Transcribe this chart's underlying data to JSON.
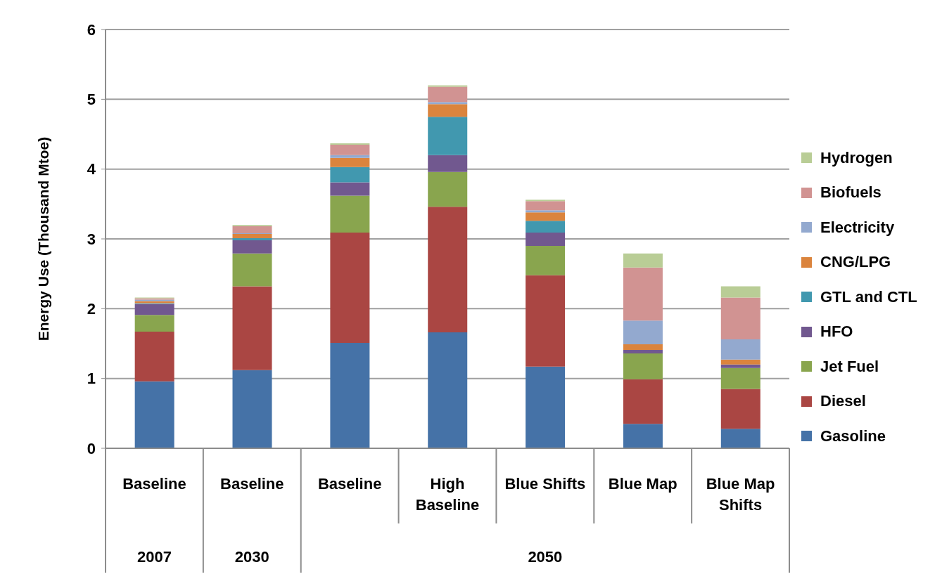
{
  "chart_data": {
    "type": "bar",
    "stacked": true,
    "ylabel": "Energy Use (Thousand Mtoe)",
    "categories": [
      "Baseline",
      "Baseline",
      "Baseline",
      "High Baseline",
      "Blue Shifts",
      "Blue Map",
      "Blue Map Shifts"
    ],
    "annotations": [
      "2007",
      "2030",
      "2050"
    ],
    "ylim": [
      0,
      6
    ],
    "yticks": [
      0,
      1,
      2,
      3,
      4,
      5,
      6
    ],
    "grid": "y",
    "legend": "right",
    "series": [
      {
        "name": "Gasoline",
        "color": "#4572a7",
        "values": [
          0.96,
          1.12,
          1.51,
          1.66,
          1.17,
          0.35,
          0.28
        ]
      },
      {
        "name": "Diesel",
        "color": "#aa4643",
        "values": [
          0.71,
          1.2,
          1.58,
          1.8,
          1.31,
          0.64,
          0.57
        ]
      },
      {
        "name": "Jet Fuel",
        "color": "#89a54e",
        "values": [
          0.24,
          0.47,
          0.53,
          0.5,
          0.42,
          0.37,
          0.3
        ]
      },
      {
        "name": "HFO",
        "color": "#71588f",
        "values": [
          0.16,
          0.19,
          0.19,
          0.24,
          0.19,
          0.05,
          0.05
        ]
      },
      {
        "name": "GTL and CTL",
        "color": "#4198af",
        "values": [
          0.01,
          0.03,
          0.22,
          0.55,
          0.17,
          0,
          0
        ]
      },
      {
        "name": "CNG/LPG",
        "color": "#db843d",
        "values": [
          0.03,
          0.06,
          0.13,
          0.18,
          0.12,
          0.08,
          0.07
        ]
      },
      {
        "name": "Electricity",
        "color": "#93a9cf",
        "values": [
          0.02,
          0.01,
          0.04,
          0.03,
          0.03,
          0.34,
          0.29
        ]
      },
      {
        "name": "Biofuels",
        "color": "#d19392",
        "values": [
          0.02,
          0.1,
          0.15,
          0.22,
          0.13,
          0.76,
          0.6
        ]
      },
      {
        "name": "Hydrogen",
        "color": "#b9cd96",
        "values": [
          0.01,
          0.02,
          0.02,
          0.02,
          0.02,
          0.2,
          0.16
        ]
      }
    ]
  }
}
